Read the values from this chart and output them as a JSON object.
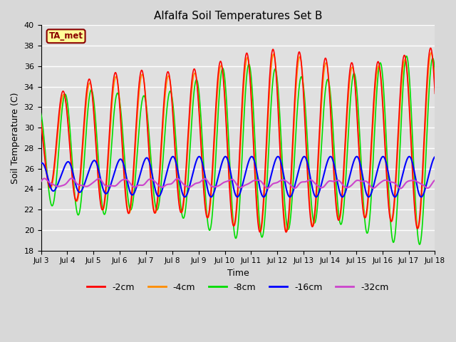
{
  "title": "Alfalfa Soil Temperatures Set B",
  "xlabel": "Time",
  "ylabel": "Soil Temperature (C)",
  "ylim": [
    18,
    40
  ],
  "xlim": [
    0,
    360
  ],
  "bg_color": "#d8d8d8",
  "plot_bg_color": "#e0e0e0",
  "grid_color": "#ffffff",
  "xtick_labels": [
    "Jul 3",
    "Jul 4",
    "Jul 5",
    "Jul 6",
    "Jul 7",
    "Jul 8",
    "Jul 9",
    "Jul 10",
    "Jul 11",
    "Jul 12",
    "Jul 13",
    "Jul 14",
    "Jul 15",
    "Jul 16",
    "Jul 17",
    "Jul 18"
  ],
  "xtick_positions": [
    0,
    24,
    48,
    72,
    96,
    120,
    144,
    168,
    192,
    216,
    240,
    264,
    288,
    312,
    336,
    360
  ],
  "annotation": "TA_met",
  "legend_labels": [
    "-2cm",
    "-4cm",
    "-8cm",
    "-16cm",
    "-32cm"
  ],
  "line_colors": [
    "#ff0000",
    "#ff8c00",
    "#00dd00",
    "#0000ff",
    "#cc44cc"
  ],
  "line_widths": [
    1.2,
    1.2,
    1.2,
    1.5,
    1.5
  ]
}
